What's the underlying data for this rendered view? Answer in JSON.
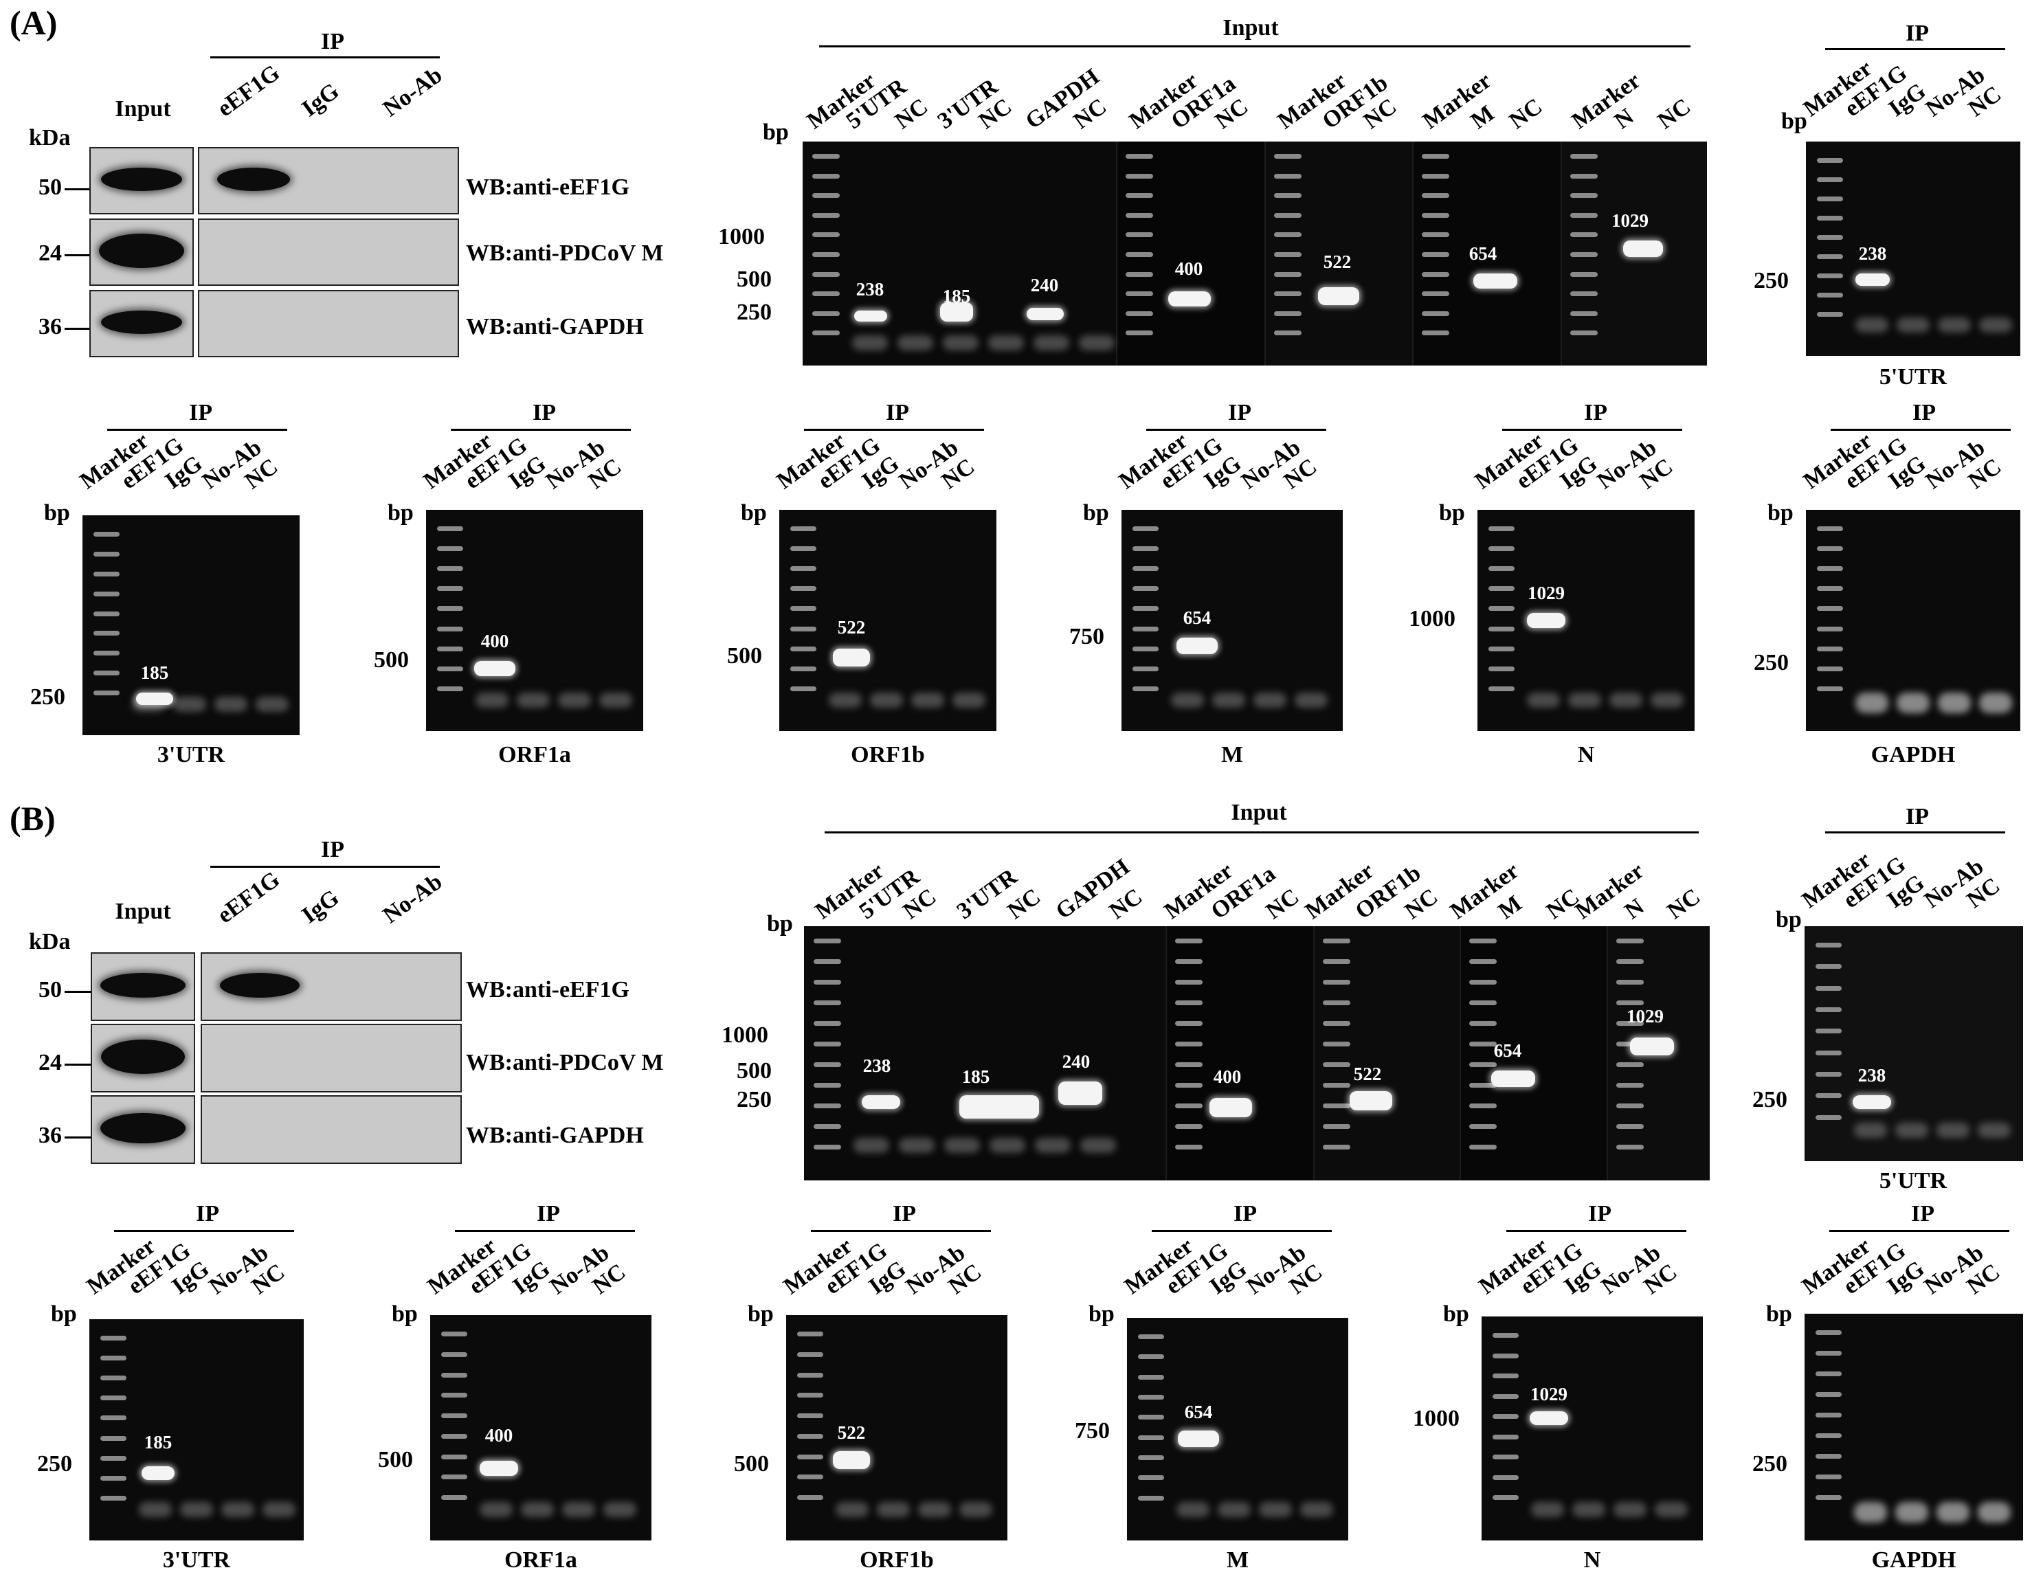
{
  "panels": [
    {
      "letter": "(A)",
      "wb": {
        "input_label": "Input",
        "ip_label": "IP",
        "kda_label": "kDa",
        "lanes": [
          "eEF1G",
          "IgG",
          "No-Ab"
        ],
        "rows": [
          {
            "kda": "50",
            "antibody": "WB:anti-eEF1G"
          },
          {
            "kda": "24",
            "antibody": "WB:anti-PDCoV M"
          },
          {
            "kda": "36",
            "antibody": "WB:anti-GAPDH"
          }
        ]
      },
      "input_gel": {
        "title": "Input",
        "bp_label": "bp",
        "scale_ticks": [
          "1000",
          "500",
          "250"
        ],
        "lanes": [
          "Marker",
          "5'UTR",
          "NC",
          "3'UTR",
          "NC",
          "GAPDH",
          "NC",
          "Marker",
          "ORF1a",
          "NC",
          "Marker",
          "ORF1b",
          "NC",
          "Marker",
          "M",
          "NC",
          "Marker",
          "N",
          "NC"
        ],
        "band_labels": [
          "238",
          "185",
          "240",
          "400",
          "522",
          "654",
          "1029"
        ]
      },
      "ip_gels": [
        {
          "target": "5'UTR",
          "ip_label": "IP",
          "bp_label": "bp",
          "scale_tick": "250",
          "band_label": "238"
        },
        {
          "target": "3'UTR",
          "ip_label": "IP",
          "bp_label": "bp",
          "scale_tick": "250",
          "band_label": "185"
        },
        {
          "target": "ORF1a",
          "ip_label": "IP",
          "bp_label": "bp",
          "scale_tick": "500",
          "band_label": "400"
        },
        {
          "target": "ORF1b",
          "ip_label": "IP",
          "bp_label": "bp",
          "scale_tick": "500",
          "band_label": "522"
        },
        {
          "target": "M",
          "ip_label": "IP",
          "bp_label": "bp",
          "scale_tick": "750",
          "band_label": "654"
        },
        {
          "target": "N",
          "ip_label": "IP",
          "bp_label": "bp",
          "scale_tick": "1000",
          "band_label": "1029"
        },
        {
          "target": "GAPDH",
          "ip_label": "IP",
          "bp_label": "bp",
          "scale_tick": "250",
          "band_label": ""
        }
      ],
      "ip_lanes": [
        "Marker",
        "eEF1G",
        "IgG",
        "No-Ab",
        "NC"
      ]
    },
    {
      "letter": "(B)",
      "wb": {
        "input_label": "Input",
        "ip_label": "IP",
        "kda_label": "kDa",
        "lanes": [
          "eEF1G",
          "IgG",
          "No-Ab"
        ],
        "rows": [
          {
            "kda": "50",
            "antibody": "WB:anti-eEF1G"
          },
          {
            "kda": "24",
            "antibody": "WB:anti-PDCoV M"
          },
          {
            "kda": "36",
            "antibody": "WB:anti-GAPDH"
          }
        ]
      },
      "input_gel": {
        "title": "Input",
        "bp_label": "bp",
        "scale_ticks": [
          "1000",
          "500",
          "250"
        ],
        "lanes": [
          "Marker",
          "5'UTR",
          "NC",
          "3'UTR",
          "NC",
          "GAPDH",
          "NC",
          "Marker",
          "ORF1a",
          "NC",
          "Marker",
          "ORF1b",
          "NC",
          "Marker",
          "M",
          "NC",
          "Marker",
          "N",
          "NC"
        ],
        "band_labels": [
          "238",
          "185",
          "240",
          "400",
          "522",
          "654",
          "1029"
        ]
      },
      "ip_gels": [
        {
          "target": "5'UTR",
          "ip_label": "IP",
          "bp_label": "bp",
          "scale_tick": "250",
          "band_label": "238"
        },
        {
          "target": "3'UTR",
          "ip_label": "IP",
          "bp_label": "bp",
          "scale_tick": "250",
          "band_label": "185"
        },
        {
          "target": "ORF1a",
          "ip_label": "IP",
          "bp_label": "bp",
          "scale_tick": "500",
          "band_label": "400"
        },
        {
          "target": "ORF1b",
          "ip_label": "IP",
          "bp_label": "bp",
          "scale_tick": "500",
          "band_label": "522"
        },
        {
          "target": "M",
          "ip_label": "IP",
          "bp_label": "bp",
          "scale_tick": "750",
          "band_label": "654"
        },
        {
          "target": "N",
          "ip_label": "IP",
          "bp_label": "bp",
          "scale_tick": "1000",
          "band_label": "1029"
        },
        {
          "target": "GAPDH",
          "ip_label": "IP",
          "bp_label": "bp",
          "scale_tick": "250",
          "band_label": ""
        }
      ],
      "ip_lanes": [
        "Marker",
        "eEF1G",
        "IgG",
        "No-Ab",
        "NC"
      ]
    }
  ]
}
